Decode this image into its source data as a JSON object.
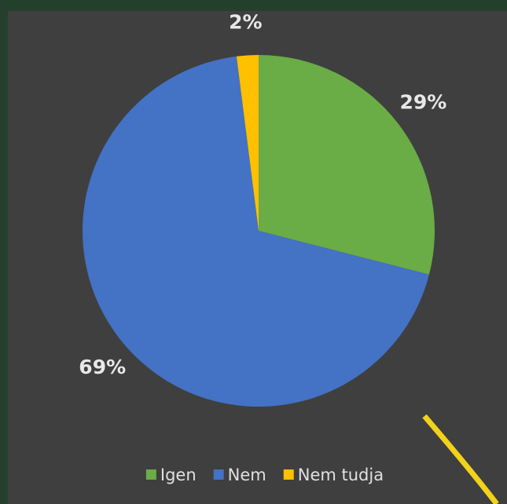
{
  "chart_data": {
    "type": "pie",
    "categories": [
      "Igen",
      "Nem",
      "Nem tudja"
    ],
    "values": [
      29,
      69,
      2
    ],
    "value_labels": [
      "29%",
      "69%",
      "2%"
    ],
    "colors": [
      "#6aac45",
      "#4472c4",
      "#ffc000"
    ],
    "legend": "bottom"
  }
}
